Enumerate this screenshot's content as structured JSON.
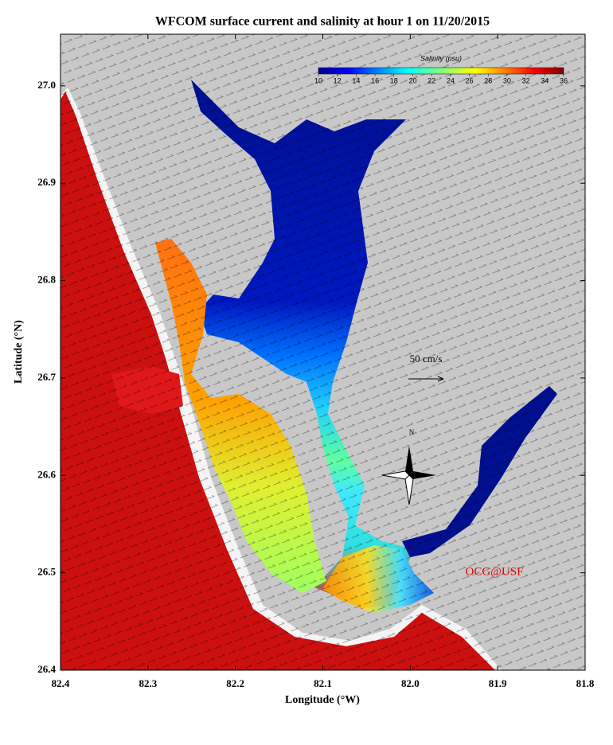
{
  "title": "WFCOM surface current and salinity at hour 1 on 11/20/2015",
  "map": {
    "xlabel": "Longitude (°W)",
    "ylabel": "Latitude (°N)",
    "xlim": [
      82.4,
      81.8
    ],
    "ylim": [
      26.4,
      27.053
    ],
    "xticks": [
      82.4,
      82.3,
      82.2,
      82.1,
      {
        "value": 82,
        "label": "82.0"
      },
      81.9,
      81.8
    ],
    "yticks": [
      26.4,
      26.5,
      26.6,
      26.7,
      26.8,
      26.9,
      {
        "value": 27,
        "label": "27.0"
      }
    ],
    "colorbar": {
      "title": "Salinity (psu)",
      "lim": [
        10,
        36
      ],
      "ticks": [
        10,
        12,
        14,
        16,
        18,
        20,
        22,
        24,
        26,
        28,
        30,
        32,
        34,
        36
      ]
    },
    "scale_label": "50 cm/s",
    "north_label": "N",
    "credit": "OCG@USF"
  }
}
